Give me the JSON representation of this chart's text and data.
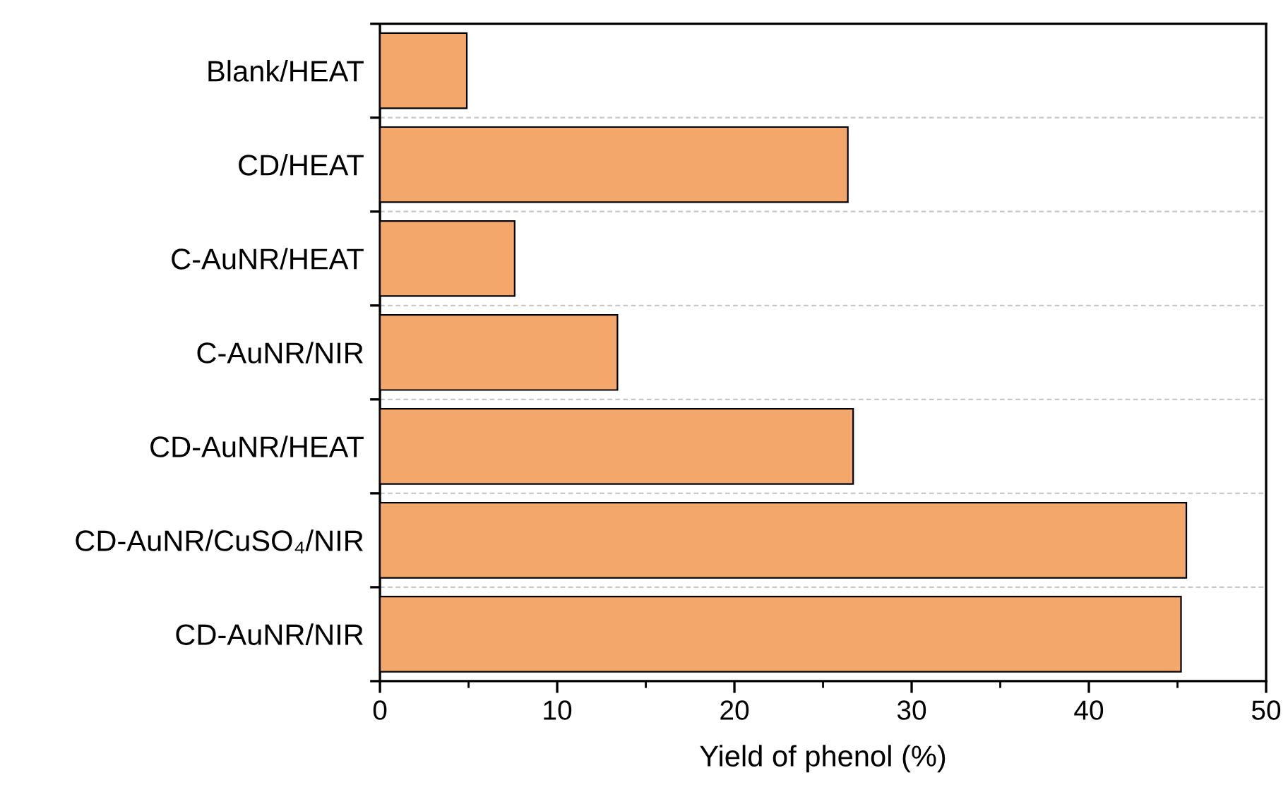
{
  "chart_data": {
    "type": "bar",
    "orientation": "horizontal",
    "xlabel": "Yield of phenol (%)",
    "categories": [
      "Blank/HEAT",
      "CD/HEAT",
      "C-AuNR/HEAT",
      "C-AuNR/NIR",
      "CD-AuNR/HEAT",
      "CD-AuNR/CuSO₄/NIR",
      "CD-AuNR/NIR"
    ],
    "values": [
      4.9,
      26.4,
      7.6,
      13.4,
      26.7,
      45.5,
      45.2
    ],
    "color": "#f4a76a",
    "xlim": [
      0,
      50
    ],
    "xticks": [
      0,
      10,
      20,
      30,
      40,
      50
    ],
    "grid": "y"
  }
}
